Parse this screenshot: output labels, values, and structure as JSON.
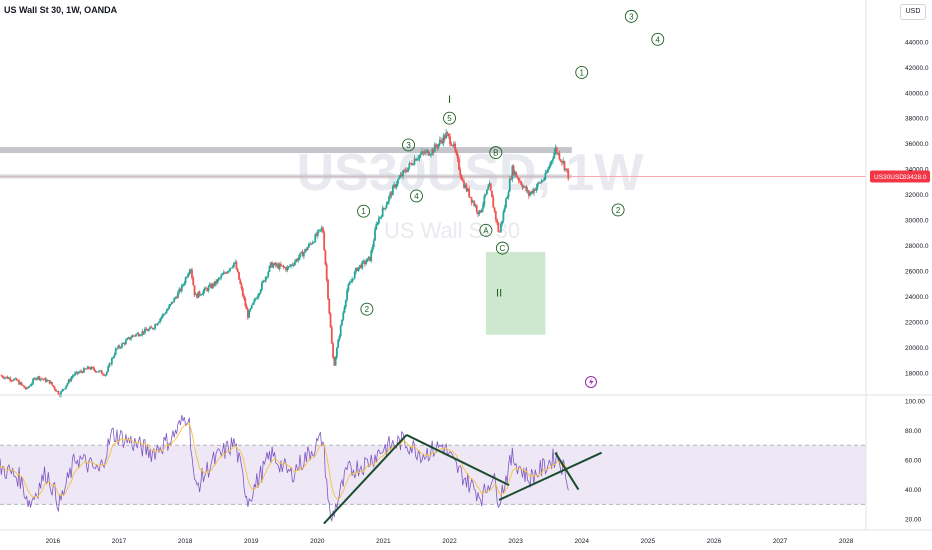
{
  "header": {
    "title": "US Wall St 30, 1W, OANDA",
    "currency": "USD"
  },
  "watermark": {
    "symbol": "US30USD, 1W",
    "name": "US Wall St 30"
  },
  "last_price": {
    "symbol": "US30USD",
    "value": "33428.0"
  },
  "chart_data": [
    {
      "type": "candlestick",
      "title": "US Wall St 30, 1W, OANDA",
      "xlabel": "",
      "ylabel": "",
      "x_ticks": [
        "2016",
        "2017",
        "2018",
        "2019",
        "2020",
        "2021",
        "2022",
        "2023",
        "2024",
        "2025",
        "2026",
        "2027",
        "2028"
      ],
      "y_ticks": [
        "18000.0",
        "20000.0",
        "22000.0",
        "24000.0",
        "26000.0",
        "28000.0",
        "30000.0",
        "32000.0",
        "34000.0",
        "36000.0",
        "38000.0",
        "40000.0",
        "42000.0",
        "44000.0"
      ],
      "ylim": [
        16500,
        46500
      ],
      "xlim": [
        2015.2,
        2028.3
      ],
      "grid": false,
      "price_path": [
        [
          2015.2,
          17800
        ],
        [
          2015.45,
          17400
        ],
        [
          2015.6,
          16700
        ],
        [
          2015.75,
          17700
        ],
        [
          2015.95,
          17300
        ],
        [
          2016.1,
          16300
        ],
        [
          2016.3,
          17800
        ],
        [
          2016.55,
          18400
        ],
        [
          2016.8,
          17900
        ],
        [
          2016.95,
          19800
        ],
        [
          2017.2,
          20900
        ],
        [
          2017.5,
          21500
        ],
        [
          2017.75,
          23100
        ],
        [
          2017.95,
          24700
        ],
        [
          2018.08,
          26400
        ],
        [
          2018.15,
          24000
        ],
        [
          2018.45,
          25000
        ],
        [
          2018.75,
          26700
        ],
        [
          2018.95,
          22500
        ],
        [
          2019.3,
          26500
        ],
        [
          2019.55,
          26200
        ],
        [
          2019.8,
          27500
        ],
        [
          2020.08,
          29400
        ],
        [
          2020.22,
          20200
        ],
        [
          2020.25,
          18500
        ],
        [
          2020.45,
          24500
        ],
        [
          2020.6,
          26200
        ],
        [
          2020.8,
          27000
        ],
        [
          2020.9,
          29800
        ],
        [
          2021.2,
          33000
        ],
        [
          2021.5,
          35000
        ],
        [
          2021.75,
          35500
        ],
        [
          2021.95,
          36700
        ],
        [
          2022.05,
          36000
        ],
        [
          2022.2,
          33000
        ],
        [
          2022.45,
          30500
        ],
        [
          2022.6,
          32700
        ],
        [
          2022.75,
          28900
        ],
        [
          2022.95,
          34000
        ],
        [
          2023.2,
          32000
        ],
        [
          2023.45,
          33400
        ],
        [
          2023.6,
          35600
        ],
        [
          2023.72,
          34500
        ],
        [
          2023.8,
          33428
        ]
      ],
      "horizontal_levels": [
        35500,
        33428
      ],
      "wave_labels": [
        {
          "text": "1",
          "x": 2020.7,
          "y": 30700
        },
        {
          "text": "2",
          "x": 2020.75,
          "y": 23000
        },
        {
          "text": "3",
          "x": 2021.38,
          "y": 35900
        },
        {
          "text": "4",
          "x": 2021.5,
          "y": 31900
        },
        {
          "text": "5",
          "x": 2022.0,
          "y": 38000
        },
        {
          "text": "I",
          "x": 2022.0,
          "y": 39500
        },
        {
          "text": "A",
          "x": 2022.55,
          "y": 29200
        },
        {
          "text": "B",
          "x": 2022.7,
          "y": 35300
        },
        {
          "text": "C",
          "x": 2022.8,
          "y": 27800
        },
        {
          "text": "II",
          "x": 2022.75,
          "y": 24300
        },
        {
          "text": "1",
          "x": 2024.0,
          "y": 41600
        },
        {
          "text": "2",
          "x": 2024.55,
          "y": 30800
        },
        {
          "text": "3",
          "x": 2024.75,
          "y": 46000
        },
        {
          "text": "4",
          "x": 2025.15,
          "y": 44200
        }
      ],
      "target_box": {
        "x_range": [
          2022.55,
          2023.45
        ],
        "y_range": [
          21000,
          27500
        ]
      }
    },
    {
      "type": "line",
      "title": "",
      "xlabel": "",
      "ylabel": "",
      "y_ticks": [
        "20.00",
        "40.00",
        "60.00",
        "80.00",
        "100.00"
      ],
      "ylim": [
        14,
        102
      ],
      "band": [
        30,
        70
      ],
      "series": [
        {
          "values": [
            [
              2015.2,
              55
            ],
            [
              2015.5,
              48
            ],
            [
              2015.65,
              30
            ],
            [
              2015.9,
              52
            ],
            [
              2016.1,
              30
            ],
            [
              2016.35,
              62
            ],
            [
              2016.7,
              52
            ],
            [
              2016.9,
              78
            ],
            [
              2017.2,
              72
            ],
            [
              2017.5,
              65
            ],
            [
              2017.8,
              75
            ],
            [
              2018.05,
              92
            ],
            [
              2018.15,
              40
            ],
            [
              2018.4,
              58
            ],
            [
              2018.75,
              72
            ],
            [
              2018.95,
              33
            ],
            [
              2019.3,
              64
            ],
            [
              2019.6,
              50
            ],
            [
              2019.9,
              66
            ],
            [
              2020.08,
              75
            ],
            [
              2020.2,
              18
            ],
            [
              2020.45,
              52
            ],
            [
              2020.75,
              58
            ],
            [
              2021.0,
              68
            ],
            [
              2021.3,
              73
            ],
            [
              2021.6,
              64
            ],
            [
              2021.9,
              70
            ],
            [
              2022.1,
              55
            ],
            [
              2022.3,
              44
            ],
            [
              2022.5,
              35
            ],
            [
              2022.65,
              50
            ],
            [
              2022.75,
              33
            ],
            [
              2022.95,
              62
            ],
            [
              2023.2,
              47
            ],
            [
              2023.45,
              56
            ],
            [
              2023.62,
              63
            ],
            [
              2023.72,
              55
            ],
            [
              2023.8,
              46
            ]
          ]
        }
      ],
      "trendlines": [
        [
          [
            2020.1,
            17
          ],
          [
            2021.35,
            77
          ]
        ],
        [
          [
            2021.35,
            77
          ],
          [
            2022.9,
            43
          ]
        ],
        [
          [
            2022.75,
            33
          ],
          [
            2024.3,
            65
          ]
        ],
        [
          [
            2023.6,
            65
          ],
          [
            2023.95,
            40
          ]
        ]
      ]
    }
  ],
  "colors": {
    "bull": "#26a69a",
    "bear": "#ef5350",
    "level": "#b2b5be",
    "box": "#a5d6a7",
    "wave": "#1b5e20",
    "rsi": "#7e57c2",
    "rsi_ma": "#f5c242",
    "rsi_band": "#ede7f6",
    "trend": "#1b4d2e",
    "last_price_bg": "#f23645",
    "axis_text": "#131722"
  },
  "icons": {
    "alert": "lightning-icon"
  }
}
